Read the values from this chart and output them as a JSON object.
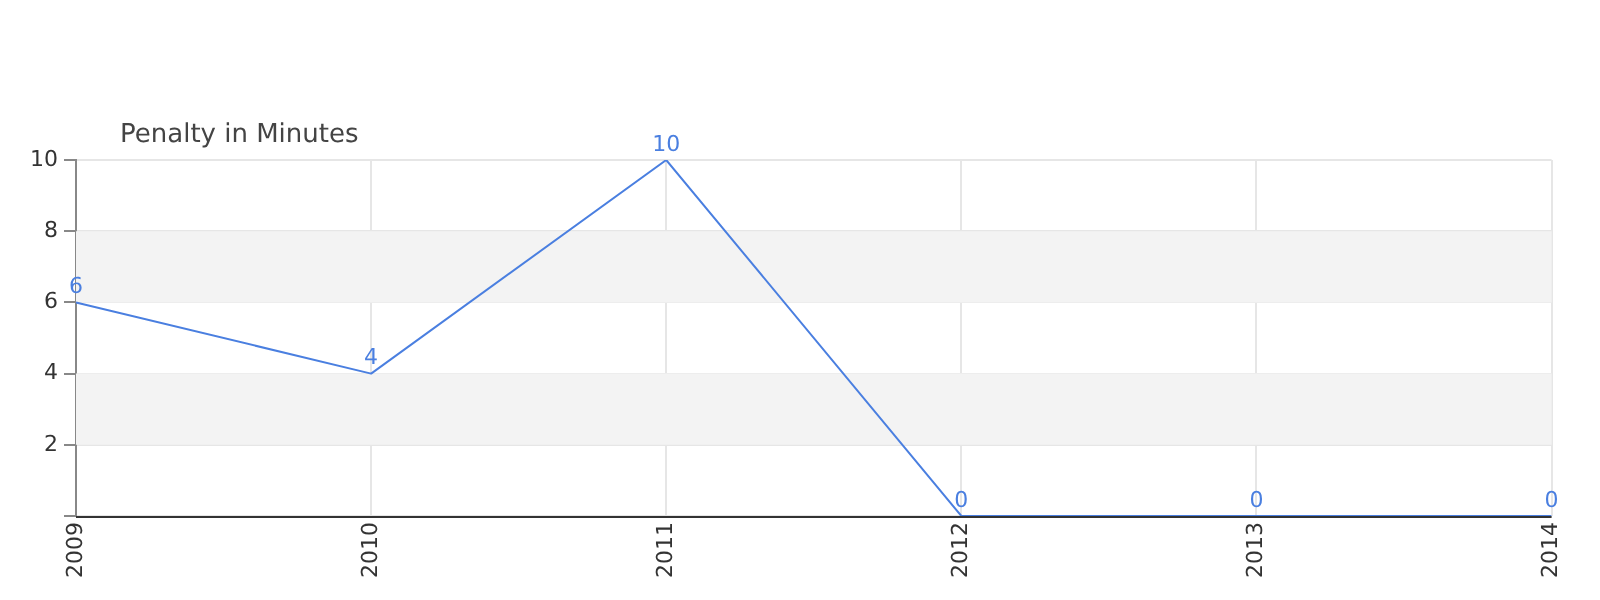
{
  "chart_data": {
    "type": "line",
    "title": "Penalty in Minutes",
    "x": [
      2009,
      2010,
      2011,
      2012,
      2013,
      2014
    ],
    "series": [
      {
        "color": "#4a7fe0",
        "values": [
          6,
          4,
          10,
          0,
          0,
          0
        ]
      }
    ],
    "xlim": [
      2009,
      2014
    ],
    "xticks": [
      2009,
      2010,
      2011,
      2012,
      2013,
      2014
    ],
    "ylim": [
      0,
      10
    ],
    "yticks": [
      {
        "value": 0,
        "label": null
      },
      2,
      4,
      6,
      8,
      10
    ],
    "bands": [
      {
        "axis": "y",
        "from": 2,
        "to": 4,
        "color": "#f3f3f3"
      },
      {
        "axis": "y",
        "from": 6,
        "to": 8,
        "color": "#f3f3f3"
      }
    ],
    "grid": true,
    "legend": false,
    "marker": "none",
    "line_style": "solid",
    "data_labels": true
  }
}
